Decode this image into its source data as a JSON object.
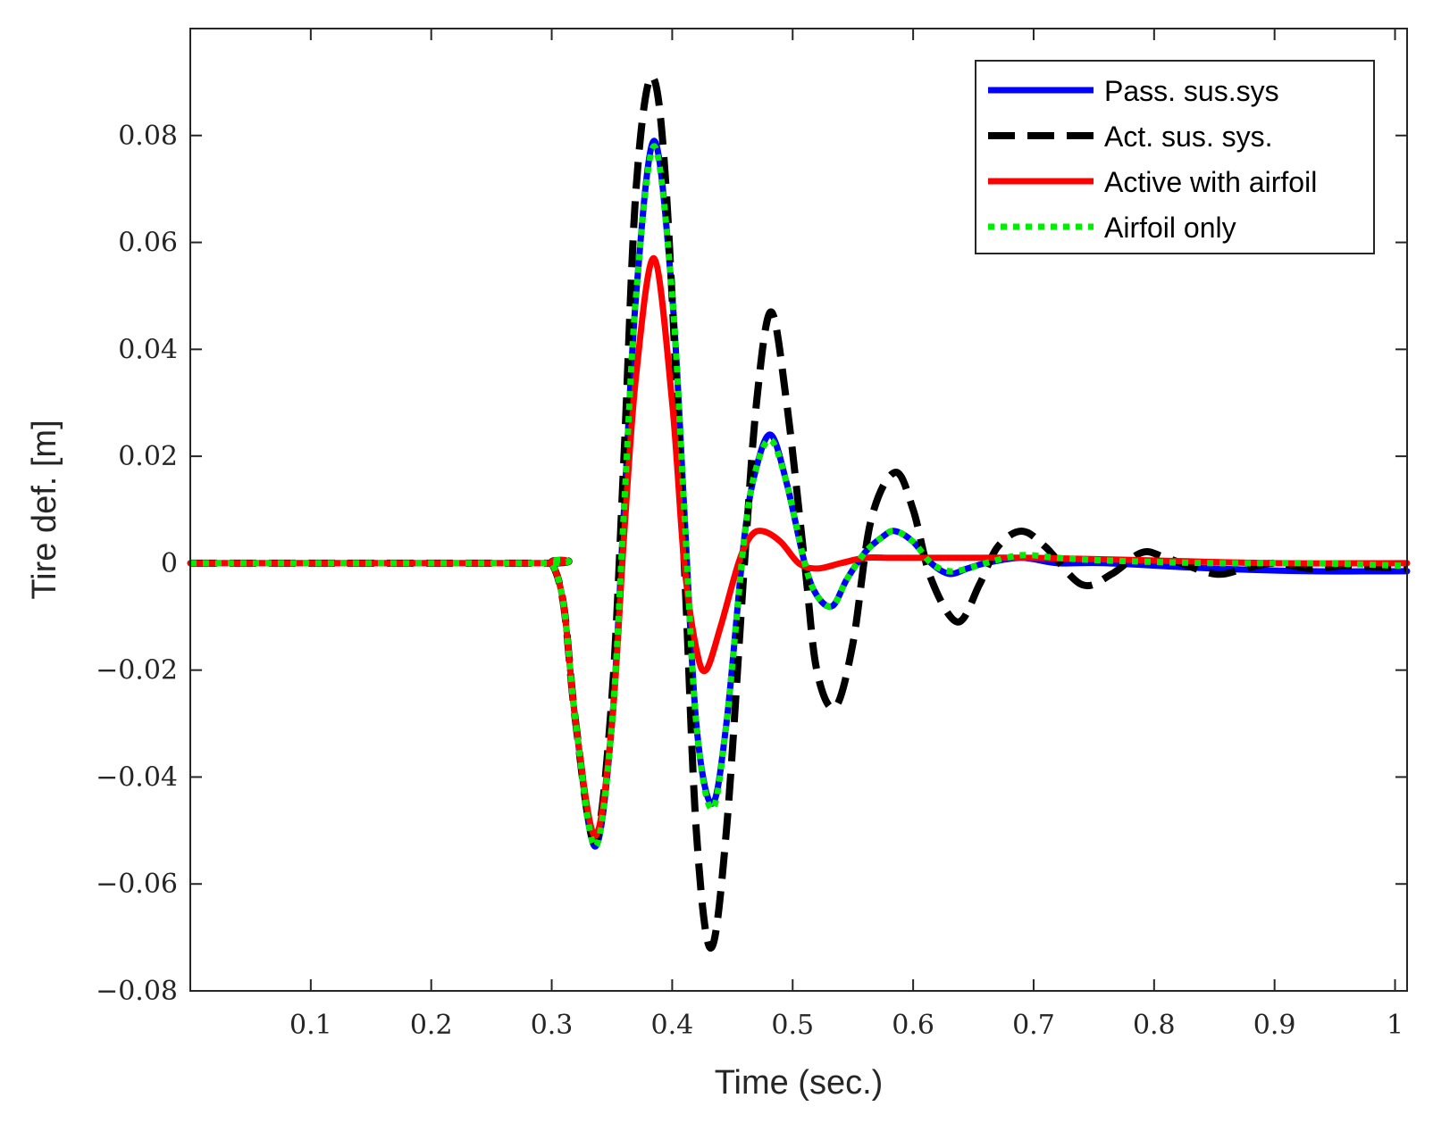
{
  "chart_data": {
    "type": "line",
    "title": "",
    "xlabel": "Time (sec.)",
    "ylabel": "Tire def. [m]",
    "xlim": [
      0,
      1.01
    ],
    "ylim": [
      -0.08,
      0.1
    ],
    "xticks": [
      0.1,
      0.2,
      0.3,
      0.4,
      0.5,
      0.6,
      0.7,
      0.8,
      0.9,
      1
    ],
    "xtick_labels": [
      "0.1",
      "0.2",
      "0.3",
      "0.4",
      "0.5",
      "0.6",
      "0.7",
      "0.8",
      "0.9",
      "1"
    ],
    "yticks": [
      -0.08,
      -0.06,
      -0.04,
      -0.02,
      0,
      0.02,
      0.04,
      0.06,
      0.08
    ],
    "ytick_labels": [
      "−0.08",
      "−0.06",
      "−0.04",
      "−0.02",
      "0",
      "0.02",
      "0.04",
      "0.06",
      "0.08"
    ],
    "grid": false,
    "legend_position": "top-right",
    "series": [
      {
        "name": "Pass. sus.sys",
        "color": "#0000ff",
        "style": "solid",
        "points": [
          [
            0,
            0
          ],
          [
            0.29,
            0
          ],
          [
            0.3,
            0
          ],
          [
            0.31,
            -0.008
          ],
          [
            0.32,
            -0.03
          ],
          [
            0.336,
            -0.053
          ],
          [
            0.35,
            -0.03
          ],
          [
            0.36,
            0.01
          ],
          [
            0.37,
            0.05
          ],
          [
            0.385,
            0.079
          ],
          [
            0.4,
            0.05
          ],
          [
            0.41,
            0.01
          ],
          [
            0.42,
            -0.03
          ],
          [
            0.433,
            -0.045
          ],
          [
            0.445,
            -0.03
          ],
          [
            0.46,
            0.005
          ],
          [
            0.47,
            0.018
          ],
          [
            0.482,
            0.024
          ],
          [
            0.495,
            0.015
          ],
          [
            0.51,
            0
          ],
          [
            0.52,
            -0.006
          ],
          [
            0.533,
            -0.008
          ],
          [
            0.545,
            -0.003
          ],
          [
            0.56,
            0.002
          ],
          [
            0.575,
            0.005
          ],
          [
            0.585,
            0.006
          ],
          [
            0.6,
            0.004
          ],
          [
            0.615,
            0
          ],
          [
            0.63,
            -0.002
          ],
          [
            0.645,
            -0.001
          ],
          [
            0.66,
            0
          ],
          [
            0.69,
            0.001
          ],
          [
            0.72,
            0
          ],
          [
            0.76,
            0
          ],
          [
            0.85,
            -0.001
          ],
          [
            0.93,
            -0.0015
          ],
          [
            1.01,
            -0.0015
          ]
        ]
      },
      {
        "name": "Act. sus. sys.",
        "color": "#000000",
        "style": "dashed",
        "points": [
          [
            0,
            0
          ],
          [
            0.29,
            0
          ],
          [
            0.3,
            0
          ],
          [
            0.31,
            -0.008
          ],
          [
            0.32,
            -0.03
          ],
          [
            0.336,
            -0.052
          ],
          [
            0.35,
            -0.025
          ],
          [
            0.36,
            0.02
          ],
          [
            0.37,
            0.07
          ],
          [
            0.383,
            0.091
          ],
          [
            0.395,
            0.07
          ],
          [
            0.41,
            0
          ],
          [
            0.42,
            -0.05
          ],
          [
            0.432,
            -0.072
          ],
          [
            0.445,
            -0.05
          ],
          [
            0.46,
            0
          ],
          [
            0.47,
            0.03
          ],
          [
            0.482,
            0.047
          ],
          [
            0.495,
            0.03
          ],
          [
            0.51,
            0
          ],
          [
            0.52,
            -0.02
          ],
          [
            0.535,
            -0.027
          ],
          [
            0.55,
            -0.015
          ],
          [
            0.565,
            0.008
          ],
          [
            0.585,
            0.017
          ],
          [
            0.6,
            0.01
          ],
          [
            0.615,
            -0.003
          ],
          [
            0.637,
            -0.011
          ],
          [
            0.655,
            -0.004
          ],
          [
            0.67,
            0.003
          ],
          [
            0.69,
            0.006
          ],
          [
            0.71,
            0.003
          ],
          [
            0.74,
            -0.004
          ],
          [
            0.765,
            -0.002
          ],
          [
            0.79,
            0.002
          ],
          [
            0.81,
            0.001
          ],
          [
            0.85,
            -0.002
          ],
          [
            0.875,
            -0.001
          ],
          [
            0.9,
            0
          ],
          [
            0.93,
            -0.001
          ],
          [
            0.96,
            -0.0005
          ],
          [
            1.01,
            -0.001
          ]
        ]
      },
      {
        "name": "Active with airfoil",
        "color": "#ff0000",
        "style": "solid",
        "points": [
          [
            0,
            0
          ],
          [
            0.29,
            0
          ],
          [
            0.3,
            0
          ],
          [
            0.31,
            -0.008
          ],
          [
            0.32,
            -0.03
          ],
          [
            0.336,
            -0.051
          ],
          [
            0.35,
            -0.03
          ],
          [
            0.36,
            0.005
          ],
          [
            0.37,
            0.035
          ],
          [
            0.385,
            0.057
          ],
          [
            0.4,
            0.03
          ],
          [
            0.41,
            0
          ],
          [
            0.42,
            -0.016
          ],
          [
            0.428,
            -0.02
          ],
          [
            0.44,
            -0.012
          ],
          [
            0.455,
            0
          ],
          [
            0.465,
            0.005
          ],
          [
            0.475,
            0.006
          ],
          [
            0.49,
            0.004
          ],
          [
            0.505,
            0
          ],
          [
            0.52,
            -0.001
          ],
          [
            0.54,
            0
          ],
          [
            0.56,
            0.001
          ],
          [
            0.58,
            0.001
          ],
          [
            0.6,
            0.001
          ],
          [
            0.65,
            0.001
          ],
          [
            0.7,
            0.001
          ],
          [
            0.8,
            0.0005
          ],
          [
            0.9,
            0
          ],
          [
            1.01,
            0
          ]
        ]
      },
      {
        "name": "Airfoil only",
        "color": "#00ee00",
        "style": "dotted",
        "points": [
          [
            0,
            0
          ],
          [
            0.29,
            0
          ],
          [
            0.3,
            0
          ],
          [
            0.31,
            -0.008
          ],
          [
            0.32,
            -0.03
          ],
          [
            0.336,
            -0.053
          ],
          [
            0.35,
            -0.03
          ],
          [
            0.36,
            0.01
          ],
          [
            0.37,
            0.05
          ],
          [
            0.385,
            0.078
          ],
          [
            0.4,
            0.05
          ],
          [
            0.41,
            0.01
          ],
          [
            0.42,
            -0.03
          ],
          [
            0.433,
            -0.046
          ],
          [
            0.445,
            -0.03
          ],
          [
            0.46,
            0.005
          ],
          [
            0.47,
            0.018
          ],
          [
            0.482,
            0.023
          ],
          [
            0.495,
            0.015
          ],
          [
            0.51,
            0
          ],
          [
            0.52,
            -0.006
          ],
          [
            0.533,
            -0.008
          ],
          [
            0.545,
            -0.003
          ],
          [
            0.56,
            0.002
          ],
          [
            0.575,
            0.005
          ],
          [
            0.585,
            0.006
          ],
          [
            0.6,
            0.004
          ],
          [
            0.615,
            0
          ],
          [
            0.63,
            -0.0015
          ],
          [
            0.645,
            -0.001
          ],
          [
            0.66,
            0
          ],
          [
            0.69,
            0.0015
          ],
          [
            0.72,
            0.001
          ],
          [
            0.76,
            0.0005
          ],
          [
            0.85,
            0
          ],
          [
            0.93,
            0
          ],
          [
            1.01,
            -0.0005
          ]
        ]
      }
    ]
  }
}
